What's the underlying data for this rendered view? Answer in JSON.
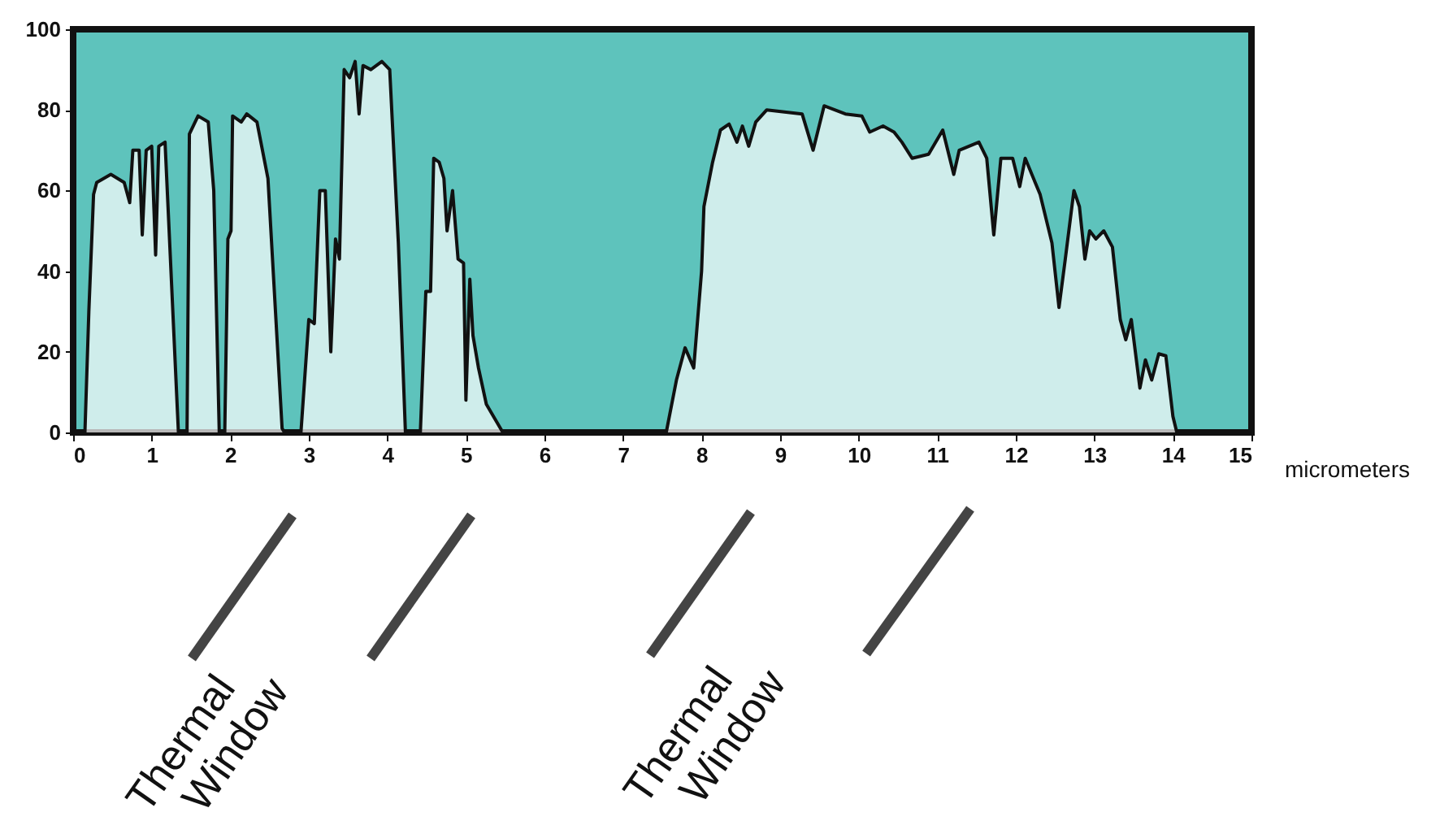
{
  "chart_data": {
    "type": "area",
    "xlabel": "micrometers",
    "x": [
      0,
      0.15,
      0.2,
      0.26,
      0.3,
      0.48,
      0.65,
      0.72,
      0.76,
      0.84,
      0.88,
      0.93,
      1.0,
      1.05,
      1.09,
      1.17,
      1.34,
      1.45,
      1.48,
      1.59,
      1.72,
      1.79,
      1.86,
      1.93,
      1.97,
      2.01,
      2.03,
      2.14,
      2.21,
      2.34,
      2.48,
      2.66,
      2.69,
      2.9,
      3.0,
      3.07,
      3.14,
      3.21,
      3.28,
      3.34,
      3.39,
      3.45,
      3.52,
      3.59,
      3.64,
      3.69,
      3.79,
      3.93,
      4.03,
      4.14,
      4.23,
      4.42,
      4.49,
      4.55,
      4.59,
      4.66,
      4.72,
      4.76,
      4.83,
      4.9,
      4.97,
      5.0,
      5.05,
      5.09,
      5.16,
      5.26,
      5.44,
      5.47,
      7.55,
      7.68,
      7.79,
      7.9,
      8.0,
      8.03,
      8.14,
      8.24,
      8.35,
      8.45,
      8.52,
      8.6,
      8.69,
      8.83,
      9.28,
      9.42,
      9.56,
      9.83,
      10.04,
      10.14,
      10.31,
      10.45,
      10.55,
      10.68,
      10.89,
      11.07,
      11.21,
      11.28,
      11.53,
      11.63,
      11.72,
      11.81,
      11.96,
      12.05,
      12.12,
      12.31,
      12.46,
      12.55,
      12.63,
      12.74,
      12.81,
      12.88,
      12.94,
      13.02,
      13.12,
      13.23,
      13.33,
      13.4,
      13.47,
      13.58,
      13.65,
      13.73,
      13.82,
      13.91,
      14.0,
      14.05,
      15
    ],
    "series": [
      {
        "color": "#ffffff",
        "values": [
          0,
          0,
          30,
          59,
          62,
          64,
          62,
          57,
          70,
          70,
          49,
          70,
          71,
          44,
          71,
          72,
          0,
          0,
          74,
          78.5,
          77,
          60,
          0,
          0,
          48,
          50,
          78.5,
          77,
          79,
          77,
          63,
          1,
          0,
          0,
          28,
          27,
          60,
          60,
          20,
          48,
          43,
          90,
          88,
          92,
          79,
          91,
          90,
          92,
          90,
          47,
          0,
          0,
          35,
          35,
          68,
          67,
          63,
          50,
          60,
          43,
          42,
          8,
          38,
          24,
          16,
          7,
          1,
          0,
          0,
          13,
          21,
          16,
          40,
          56,
          67,
          75,
          76.5,
          72,
          76,
          71,
          77,
          80,
          79,
          70,
          81,
          79,
          78.5,
          74.5,
          76,
          74.5,
          72,
          68,
          69,
          75,
          64,
          70,
          72,
          68,
          49,
          68,
          68,
          61,
          68,
          59,
          47,
          31,
          43,
          60,
          56,
          43,
          50,
          48,
          50,
          46,
          28,
          23,
          28,
          11,
          18,
          13,
          19.5,
          19,
          4,
          0,
          0
        ]
      }
    ],
    "xlim": [
      0,
      15
    ],
    "xticks": [
      0,
      1,
      2,
      3,
      4,
      5,
      6,
      7,
      8,
      9,
      10,
      11,
      12,
      13,
      14,
      15
    ],
    "ylim": [
      0,
      100
    ],
    "yticks": [
      0,
      20,
      40,
      60,
      80,
      100
    ],
    "grid": false,
    "annotations": [
      "Thermal Window",
      "Thermal Window"
    ]
  }
}
